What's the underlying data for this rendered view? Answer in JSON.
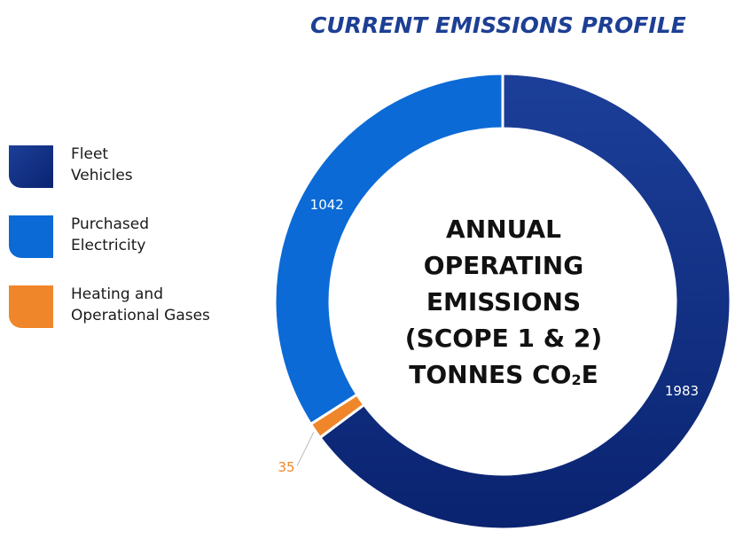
{
  "title": "CURRENT EMISSIONS PROFILE",
  "legend": {
    "items": [
      {
        "line1": "Fleet",
        "line2": "Vehicles"
      },
      {
        "line1": "Purchased",
        "line2": "Electricity"
      },
      {
        "line1": "Heating and",
        "line2": "Operational Gases"
      }
    ]
  },
  "center_label": {
    "line1": "ANNUAL",
    "line2": "OPERATING",
    "line3": "EMISSIONS",
    "line4": "(SCOPE 1 & 2)",
    "line5_prefix": "TONNES CO",
    "line5_sub": "2",
    "line5_suffix": "E"
  },
  "colors": {
    "fleet_dark": "#0a2370",
    "fleet_light": "#1c3f99",
    "electricity": "#0b6ad6",
    "gases": "#f0862a",
    "title": "#1d3f94"
  },
  "chart_data": {
    "type": "pie",
    "donut": true,
    "title": "CURRENT EMISSIONS PROFILE",
    "slices": [
      {
        "label": "Fleet Vehicles",
        "value": 1983,
        "color": "#0a2c80",
        "data_label": "1983"
      },
      {
        "label": "Heating and Operational Gases",
        "value": 35,
        "color": "#f0862a",
        "data_label": "35"
      },
      {
        "label": "Purchased Electricity",
        "value": 1042,
        "color": "#0b6ad6",
        "data_label": "1042"
      }
    ],
    "start": "top",
    "direction": "clockwise",
    "legend_placement": "left"
  }
}
